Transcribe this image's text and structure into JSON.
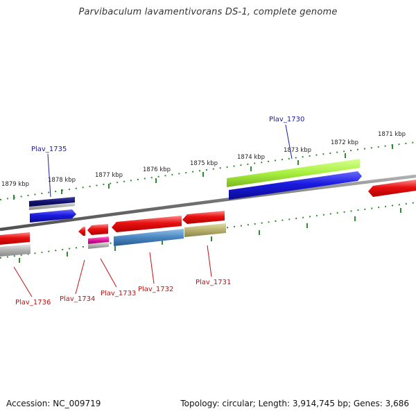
{
  "title": "Parvibaculum lavamentivorans DS-1, complete genome",
  "accession": "Accession: NC_009719",
  "topology": "Topology: circular; Length: 3,914,745 bp; Genes: 3,686",
  "colors": {
    "backbone": "#7a7a7a",
    "tick": "#2e8b2e",
    "label_forward": "#1a1aa0",
    "label_reverse": "#c01010",
    "red": "#e81010",
    "blue": "#1a1ae0",
    "navy": "#101070",
    "lime": "#a8f040",
    "magenta": "#e0189a",
    "steel": "#4a86c0",
    "khaki": "#b8b070",
    "grey": "#b0b0b0"
  },
  "kbp_ticks": [
    "1879 kbp",
    "1878 kbp",
    "1877 kbp",
    "1876 kbp",
    "1875 kbp",
    "1874 kbp",
    "1873 kbp",
    "1872 kbp",
    "1871 kbp"
  ],
  "gene_labels": [
    "Plav_1735",
    "Plav_1730",
    "Plav_1736",
    "Plav_1734",
    "Plav_1733",
    "Plav_1732",
    "Plav_1731"
  ]
}
